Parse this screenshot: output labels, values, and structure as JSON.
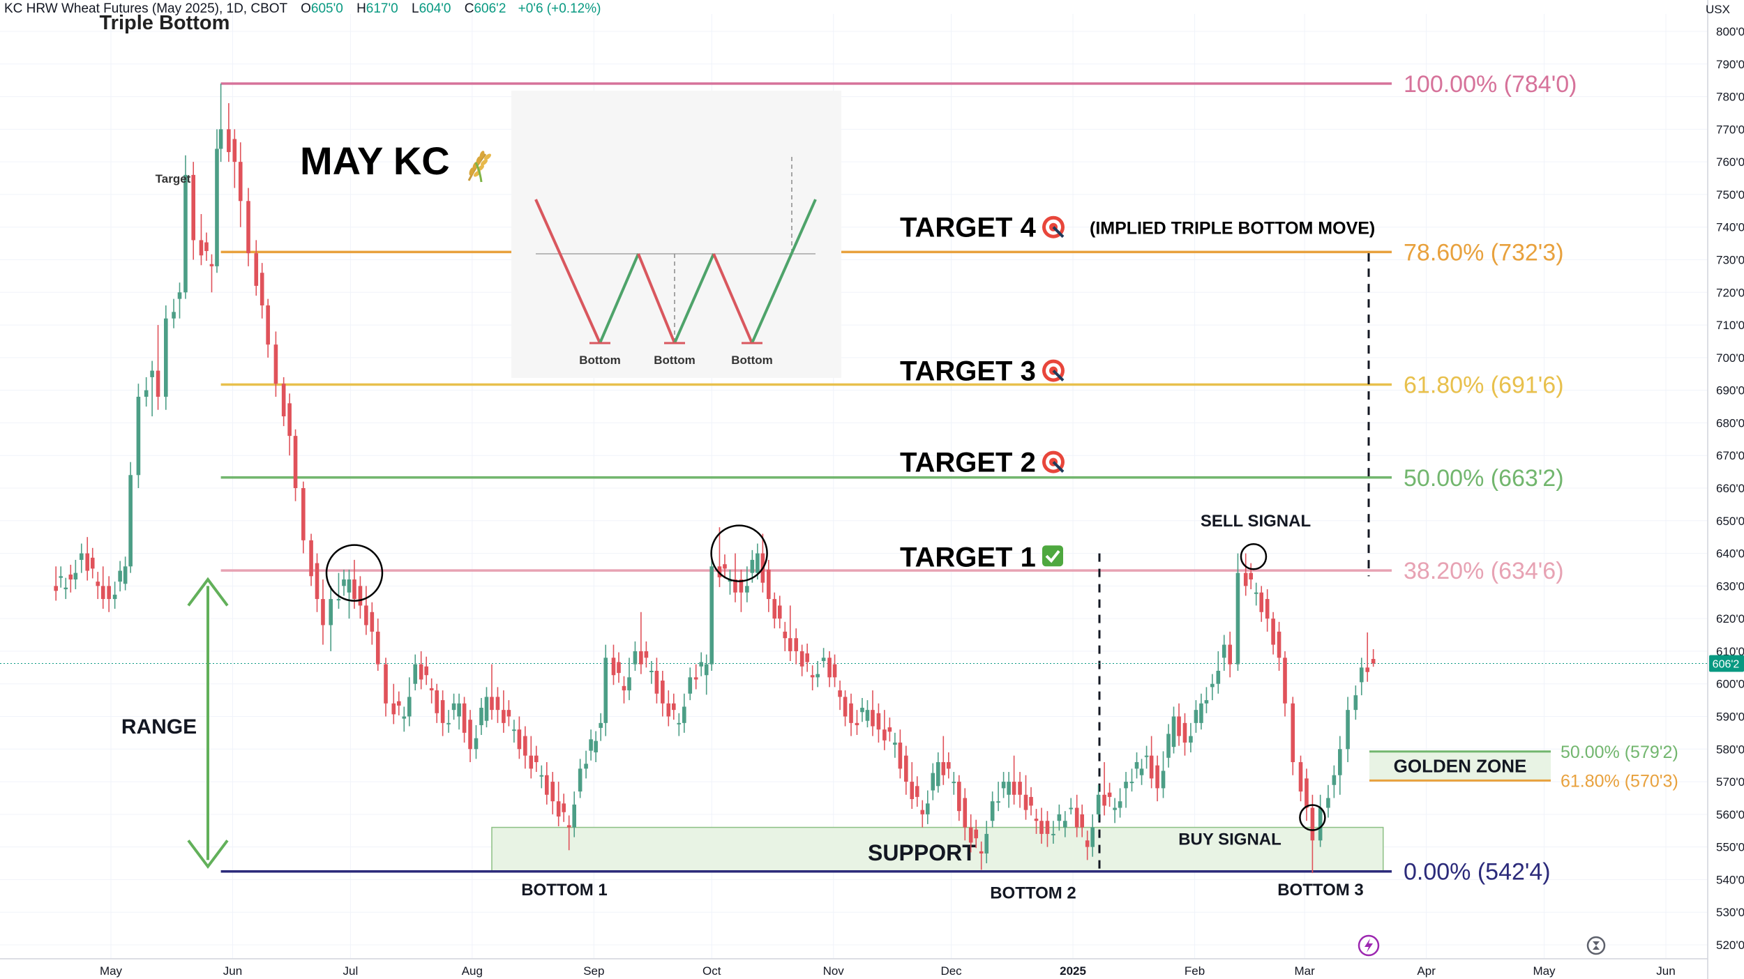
{
  "header": {
    "symbol": "KC HRW Wheat Futures (May 2025), 1D, CBOT",
    "open_label": "O",
    "open": "605'0",
    "high_label": "H",
    "high": "617'0",
    "low_label": "L",
    "low": "604'0",
    "close_label": "C",
    "close": "606'2",
    "change": "+0'6 (+0.12%)"
  },
  "unit_label": "USX",
  "icons": {
    "lightning": "lightning-icon",
    "replay": "replay-icon",
    "wheat": "wheat-emoji-icon",
    "dart": "dart-target-icon",
    "check": "check-mark-icon"
  },
  "colors": {
    "up": "#4c9e86",
    "down": "#e0525a",
    "fib100": "#d6729a",
    "fib786": "#e8a13d",
    "fib618": "#e8c04c",
    "fib50": "#72b66e",
    "fib382": "#e7a2b3",
    "fib0": "#2b2a7a",
    "range_arrow": "#62b05a",
    "support_fill": "#e8f3e4",
    "support_border": "#8cc084"
  },
  "chart_data": {
    "type": "candlestick",
    "title": "MAY KC",
    "y_axis": {
      "ticks": [
        "520'0",
        "530'0",
        "540'0",
        "550'0",
        "560'0",
        "570'0",
        "580'0",
        "590'0",
        "600'0",
        "610'0",
        "620'0",
        "630'0",
        "640'0",
        "650'0",
        "660'0",
        "670'0",
        "680'0",
        "690'0",
        "700'0",
        "710'0",
        "720'0",
        "730'0",
        "740'0",
        "750'0",
        "760'0",
        "770'0",
        "780'0",
        "790'0",
        "800'0"
      ],
      "range": [
        517,
        803
      ]
    },
    "x_axis": {
      "ticks": [
        "May",
        "Jun",
        "Jul",
        "Aug",
        "Sep",
        "Oct",
        "Nov",
        "Dec",
        "2025",
        "Feb",
        "Mar",
        "Apr",
        "May",
        "Jun"
      ],
      "range": [
        "2024-04-16",
        "2025-06-18"
      ]
    },
    "last_price": {
      "value": 606.25,
      "label": "606'2"
    },
    "candles_approx": [
      {
        "d": "2024-04-17",
        "o": 630,
        "h": 638,
        "l": 626,
        "c": 632
      },
      {
        "d": "2024-04-22",
        "o": 632,
        "h": 644,
        "l": 628,
        "c": 640
      },
      {
        "d": "2024-04-25",
        "o": 640,
        "h": 645,
        "l": 626,
        "c": 630
      },
      {
        "d": "2024-04-29",
        "o": 630,
        "h": 636,
        "l": 622,
        "c": 626
      },
      {
        "d": "2024-05-02",
        "o": 626,
        "h": 640,
        "l": 624,
        "c": 636
      },
      {
        "d": "2024-05-06",
        "o": 636,
        "h": 668,
        "l": 634,
        "c": 664
      },
      {
        "d": "2024-05-08",
        "o": 664,
        "h": 692,
        "l": 660,
        "c": 688
      },
      {
        "d": "2024-05-10",
        "o": 688,
        "h": 700,
        "l": 676,
        "c": 696
      },
      {
        "d": "2024-05-13",
        "o": 696,
        "h": 710,
        "l": 684,
        "c": 688
      },
      {
        "d": "2024-05-15",
        "o": 688,
        "h": 716,
        "l": 684,
        "c": 712
      },
      {
        "d": "2024-05-17",
        "o": 712,
        "h": 724,
        "l": 706,
        "c": 720
      },
      {
        "d": "2024-05-20",
        "o": 720,
        "h": 762,
        "l": 718,
        "c": 756
      },
      {
        "d": "2024-05-22",
        "o": 756,
        "h": 760,
        "l": 730,
        "c": 736
      },
      {
        "d": "2024-05-24",
        "o": 736,
        "h": 744,
        "l": 720,
        "c": 728
      },
      {
        "d": "2024-05-28",
        "o": 728,
        "h": 770,
        "l": 726,
        "c": 764
      },
      {
        "d": "2024-05-29",
        "o": 764,
        "h": 784,
        "l": 760,
        "c": 770
      },
      {
        "d": "2024-05-31",
        "o": 770,
        "h": 778,
        "l": 752,
        "c": 760
      },
      {
        "d": "2024-06-03",
        "o": 760,
        "h": 766,
        "l": 740,
        "c": 748
      },
      {
        "d": "2024-06-05",
        "o": 748,
        "h": 752,
        "l": 728,
        "c": 732
      },
      {
        "d": "2024-06-07",
        "o": 732,
        "h": 736,
        "l": 712,
        "c": 716
      },
      {
        "d": "2024-06-10",
        "o": 716,
        "h": 718,
        "l": 700,
        "c": 704
      },
      {
        "d": "2024-06-12",
        "o": 704,
        "h": 708,
        "l": 688,
        "c": 692
      },
      {
        "d": "2024-06-14",
        "o": 692,
        "h": 694,
        "l": 670,
        "c": 676
      },
      {
        "d": "2024-06-17",
        "o": 676,
        "h": 678,
        "l": 656,
        "c": 660
      },
      {
        "d": "2024-06-19",
        "o": 660,
        "h": 662,
        "l": 640,
        "c": 644
      },
      {
        "d": "2024-06-21",
        "o": 644,
        "h": 646,
        "l": 622,
        "c": 626
      },
      {
        "d": "2024-06-24",
        "o": 626,
        "h": 632,
        "l": 612,
        "c": 618
      },
      {
        "d": "2024-06-26",
        "o": 618,
        "h": 630,
        "l": 610,
        "c": 626
      },
      {
        "d": "2024-06-28",
        "o": 626,
        "h": 640,
        "l": 618,
        "c": 632
      },
      {
        "d": "2024-07-02",
        "o": 632,
        "h": 638,
        "l": 620,
        "c": 624
      },
      {
        "d": "2024-07-05",
        "o": 624,
        "h": 630,
        "l": 612,
        "c": 616
      },
      {
        "d": "2024-07-08",
        "o": 616,
        "h": 620,
        "l": 604,
        "c": 606
      },
      {
        "d": "2024-07-10",
        "o": 606,
        "h": 608,
        "l": 590,
        "c": 594
      },
      {
        "d": "2024-07-12",
        "o": 594,
        "h": 600,
        "l": 586,
        "c": 590
      },
      {
        "d": "2024-07-16",
        "o": 590,
        "h": 612,
        "l": 588,
        "c": 606
      },
      {
        "d": "2024-07-19",
        "o": 606,
        "h": 610,
        "l": 594,
        "c": 598
      },
      {
        "d": "2024-07-23",
        "o": 598,
        "h": 600,
        "l": 584,
        "c": 588
      },
      {
        "d": "2024-07-26",
        "o": 588,
        "h": 598,
        "l": 584,
        "c": 594
      },
      {
        "d": "2024-07-30",
        "o": 594,
        "h": 596,
        "l": 576,
        "c": 580
      },
      {
        "d": "2024-08-02",
        "o": 580,
        "h": 600,
        "l": 578,
        "c": 596
      },
      {
        "d": "2024-08-06",
        "o": 596,
        "h": 606,
        "l": 588,
        "c": 592
      },
      {
        "d": "2024-08-09",
        "o": 592,
        "h": 598,
        "l": 582,
        "c": 586
      },
      {
        "d": "2024-08-13",
        "o": 586,
        "h": 590,
        "l": 574,
        "c": 578
      },
      {
        "d": "2024-08-16",
        "o": 578,
        "h": 584,
        "l": 568,
        "c": 572
      },
      {
        "d": "2024-08-20",
        "o": 572,
        "h": 576,
        "l": 560,
        "c": 564
      },
      {
        "d": "2024-08-23",
        "o": 564,
        "h": 570,
        "l": 549,
        "c": 556
      },
      {
        "d": "2024-08-27",
        "o": 556,
        "h": 578,
        "l": 554,
        "c": 574
      },
      {
        "d": "2024-08-30",
        "o": 574,
        "h": 592,
        "l": 570,
        "c": 588
      },
      {
        "d": "2024-09-04",
        "o": 588,
        "h": 612,
        "l": 584,
        "c": 608
      },
      {
        "d": "2024-09-06",
        "o": 608,
        "h": 612,
        "l": 594,
        "c": 598
      },
      {
        "d": "2024-09-10",
        "o": 598,
        "h": 616,
        "l": 596,
        "c": 610
      },
      {
        "d": "2024-09-13",
        "o": 610,
        "h": 622,
        "l": 600,
        "c": 604
      },
      {
        "d": "2024-09-17",
        "o": 604,
        "h": 608,
        "l": 590,
        "c": 594
      },
      {
        "d": "2024-09-20",
        "o": 594,
        "h": 598,
        "l": 584,
        "c": 588
      },
      {
        "d": "2024-09-24",
        "o": 588,
        "h": 606,
        "l": 586,
        "c": 602
      },
      {
        "d": "2024-09-27",
        "o": 602,
        "h": 610,
        "l": 596,
        "c": 606
      },
      {
        "d": "2024-10-01",
        "o": 606,
        "h": 642,
        "l": 604,
        "c": 636
      },
      {
        "d": "2024-10-03",
        "o": 636,
        "h": 648,
        "l": 628,
        "c": 632
      },
      {
        "d": "2024-10-07",
        "o": 632,
        "h": 640,
        "l": 622,
        "c": 628
      },
      {
        "d": "2024-10-10",
        "o": 628,
        "h": 646,
        "l": 626,
        "c": 640
      },
      {
        "d": "2024-10-14",
        "o": 640,
        "h": 646,
        "l": 622,
        "c": 626
      },
      {
        "d": "2024-10-17",
        "o": 626,
        "h": 628,
        "l": 610,
        "c": 614
      },
      {
        "d": "2024-10-21",
        "o": 614,
        "h": 624,
        "l": 606,
        "c": 610
      },
      {
        "d": "2024-10-24",
        "o": 610,
        "h": 612,
        "l": 598,
        "c": 602
      },
      {
        "d": "2024-10-28",
        "o": 602,
        "h": 612,
        "l": 600,
        "c": 608
      },
      {
        "d": "2024-10-31",
        "o": 608,
        "h": 610,
        "l": 592,
        "c": 596
      },
      {
        "d": "2024-11-04",
        "o": 596,
        "h": 598,
        "l": 584,
        "c": 588
      },
      {
        "d": "2024-11-07",
        "o": 588,
        "h": 596,
        "l": 586,
        "c": 592
      },
      {
        "d": "2024-11-11",
        "o": 592,
        "h": 598,
        "l": 582,
        "c": 586
      },
      {
        "d": "2024-11-14",
        "o": 586,
        "h": 592,
        "l": 578,
        "c": 582
      },
      {
        "d": "2024-11-18",
        "o": 582,
        "h": 586,
        "l": 566,
        "c": 570
      },
      {
        "d": "2024-11-21",
        "o": 570,
        "h": 576,
        "l": 556,
        "c": 560
      },
      {
        "d": "2024-11-25",
        "o": 560,
        "h": 580,
        "l": 558,
        "c": 576
      },
      {
        "d": "2024-11-29",
        "o": 576,
        "h": 584,
        "l": 566,
        "c": 570
      },
      {
        "d": "2024-12-03",
        "o": 570,
        "h": 572,
        "l": 552,
        "c": 556
      },
      {
        "d": "2024-12-06",
        "o": 556,
        "h": 560,
        "l": 543,
        "c": 548
      },
      {
        "d": "2024-12-10",
        "o": 548,
        "h": 568,
        "l": 546,
        "c": 564
      },
      {
        "d": "2024-12-13",
        "o": 564,
        "h": 576,
        "l": 560,
        "c": 570
      },
      {
        "d": "2024-12-17",
        "o": 570,
        "h": 578,
        "l": 562,
        "c": 566
      },
      {
        "d": "2024-12-20",
        "o": 566,
        "h": 572,
        "l": 554,
        "c": 558
      },
      {
        "d": "2024-12-24",
        "o": 558,
        "h": 562,
        "l": 550,
        "c": 554
      },
      {
        "d": "2024-12-27",
        "o": 554,
        "h": 566,
        "l": 552,
        "c": 562
      },
      {
        "d": "2025-01-02",
        "o": 562,
        "h": 566,
        "l": 546,
        "c": 550
      },
      {
        "d": "2025-01-06",
        "o": 550,
        "h": 570,
        "l": 548,
        "c": 566
      },
      {
        "d": "2025-01-09",
        "o": 566,
        "h": 576,
        "l": 558,
        "c": 562
      },
      {
        "d": "2025-01-13",
        "o": 562,
        "h": 574,
        "l": 556,
        "c": 570
      },
      {
        "d": "2025-01-16",
        "o": 570,
        "h": 582,
        "l": 566,
        "c": 578
      },
      {
        "d": "2025-01-21",
        "o": 578,
        "h": 584,
        "l": 564,
        "c": 568
      },
      {
        "d": "2025-01-24",
        "o": 568,
        "h": 596,
        "l": 566,
        "c": 590
      },
      {
        "d": "2025-01-28",
        "o": 590,
        "h": 594,
        "l": 578,
        "c": 582
      },
      {
        "d": "2025-01-31",
        "o": 582,
        "h": 598,
        "l": 580,
        "c": 594
      },
      {
        "d": "2025-02-04",
        "o": 594,
        "h": 604,
        "l": 590,
        "c": 600
      },
      {
        "d": "2025-02-07",
        "o": 600,
        "h": 618,
        "l": 596,
        "c": 612
      },
      {
        "d": "2025-02-10",
        "o": 612,
        "h": 616,
        "l": 602,
        "c": 606
      },
      {
        "d": "2025-02-12",
        "o": 606,
        "h": 640,
        "l": 604,
        "c": 634
      },
      {
        "d": "2025-02-14",
        "o": 634,
        "h": 640,
        "l": 624,
        "c": 628
      },
      {
        "d": "2025-02-18",
        "o": 628,
        "h": 630,
        "l": 616,
        "c": 620
      },
      {
        "d": "2025-02-21",
        "o": 620,
        "h": 622,
        "l": 604,
        "c": 608
      },
      {
        "d": "2025-02-24",
        "o": 608,
        "h": 610,
        "l": 590,
        "c": 594
      },
      {
        "d": "2025-02-26",
        "o": 594,
        "h": 596,
        "l": 572,
        "c": 576
      },
      {
        "d": "2025-02-28",
        "o": 576,
        "h": 578,
        "l": 558,
        "c": 562
      },
      {
        "d": "2025-03-03",
        "o": 562,
        "h": 566,
        "l": 542,
        "c": 552
      },
      {
        "d": "2025-03-05",
        "o": 552,
        "h": 566,
        "l": 550,
        "c": 562
      },
      {
        "d": "2025-03-07",
        "o": 562,
        "h": 576,
        "l": 558,
        "c": 572
      },
      {
        "d": "2025-03-10",
        "o": 572,
        "h": 584,
        "l": 566,
        "c": 580
      },
      {
        "d": "2025-03-12",
        "o": 580,
        "h": 596,
        "l": 576,
        "c": 592
      },
      {
        "d": "2025-03-14",
        "o": 592,
        "h": 608,
        "l": 588,
        "c": 605
      },
      {
        "d": "2025-03-17",
        "o": 605,
        "h": 617,
        "l": 604,
        "c": 606.25
      }
    ],
    "fib_levels": [
      {
        "pct": "100.00%",
        "price": 784.0,
        "label": "100.00% (784'0)",
        "color": "#d6729a",
        "from": "2024-05-29"
      },
      {
        "pct": "78.60%",
        "price": 732.375,
        "label": "78.60% (732'3)",
        "color": "#e8a13d",
        "from": "2024-05-29"
      },
      {
        "pct": "61.80%",
        "price": 691.75,
        "label": "61.80% (691'6)",
        "color": "#e8c04c",
        "from": "2024-05-29"
      },
      {
        "pct": "50.00%",
        "price": 663.25,
        "label": "50.00% (663'2)",
        "color": "#72b66e",
        "from": "2024-05-29"
      },
      {
        "pct": "38.20%",
        "price": 634.75,
        "label": "38.20% (634'6)",
        "color": "#e7a2b3",
        "from": "2024-05-29"
      },
      {
        "pct": "0.00%",
        "price": 542.5,
        "label": "0.00% (542'4)",
        "color": "#2b2a7a",
        "from": "2024-05-29"
      }
    ],
    "golden_zone": {
      "label": "GOLDEN ZONE",
      "top": {
        "label": "50.00% (579'2)",
        "price": 579.25
      },
      "bottom": {
        "label": "61.80% (570'3)",
        "price": 570.375
      }
    },
    "support_zone": {
      "label": "SUPPORT",
      "from": "2024-08-06",
      "to": "2025-03-21",
      "low": 542.5,
      "high": 556
    },
    "targets": [
      {
        "label": "TARGET 4",
        "price": 740,
        "note": "(IMPLIED TRIPLE BOTTOM MOVE)"
      },
      {
        "label": "TARGET 3",
        "price": 696
      },
      {
        "label": "TARGET 2",
        "price": 668
      },
      {
        "label": "TARGET 1",
        "price": 639,
        "status": "check"
      }
    ],
    "annotations": [
      {
        "text": "RANGE",
        "date": "2024-05-05",
        "price": 587
      },
      {
        "text": "BOTTOM 1",
        "date": "2024-08-23",
        "price": 537
      },
      {
        "text": "BOTTOM 2",
        "date": "2024-12-22",
        "price": 536
      },
      {
        "text": "BOTTOM 3",
        "date": "2025-03-07",
        "price": 537
      },
      {
        "text": "SELL SIGNAL",
        "date": "2025-02-16",
        "price": 650
      },
      {
        "text": "BUY SIGNAL",
        "date": "2025-02-05",
        "price": 552.5
      }
    ],
    "circles": [
      {
        "date": "2024-07-02",
        "price": 634
      },
      {
        "date": "2024-10-08",
        "price": 640
      },
      {
        "date": "2025-02-16",
        "price": 639
      },
      {
        "date": "2025-03-03",
        "price": 559
      }
    ],
    "inset": {
      "title": "Triple Bottom",
      "labels": [
        "Target",
        "Bottom",
        "Bottom",
        "Bottom"
      ]
    }
  }
}
